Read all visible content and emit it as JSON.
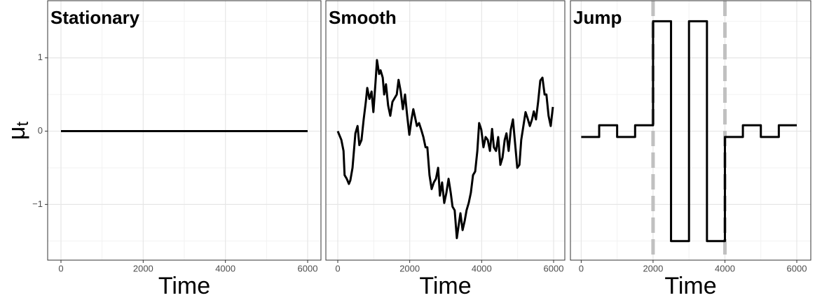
{
  "chart_data": [
    {
      "type": "line",
      "title": "Stationary",
      "y_label": {
        "main": "μ",
        "sub": "t"
      },
      "x_label": "Time",
      "color": "#000000",
      "x": [
        0,
        6000
      ],
      "values": [
        0,
        0
      ],
      "xlim": [
        -324,
        6324
      ],
      "ylim": [
        -1.76,
        1.78
      ],
      "xticks": [
        0,
        2000,
        4000,
        6000
      ],
      "yticks": [
        {
          "value": -1,
          "label": "−1"
        },
        0,
        1
      ],
      "xminor": [
        1000,
        3000,
        5000
      ],
      "yminor": [
        -1.5,
        -0.5,
        0.5,
        1.5
      ],
      "grid": true
    },
    {
      "type": "line",
      "title": "Smooth",
      "x_label": "Time",
      "color": "#000000",
      "x": [
        0,
        100,
        160,
        190,
        250,
        310,
        350,
        410,
        490,
        550,
        600,
        660,
        720,
        780,
        820,
        880,
        940,
        990,
        1050,
        1090,
        1150,
        1190,
        1250,
        1290,
        1340,
        1400,
        1460,
        1520,
        1580,
        1640,
        1690,
        1750,
        1810,
        1870,
        1930,
        1990,
        2050,
        2100,
        2140,
        2200,
        2260,
        2320,
        2380,
        2440,
        2490,
        2550,
        2610,
        2670,
        2730,
        2790,
        2840,
        2900,
        2960,
        3020,
        3080,
        3140,
        3190,
        3250,
        3310,
        3350,
        3410,
        3470,
        3530,
        3580,
        3640,
        3700,
        3760,
        3820,
        3880,
        3930,
        3990,
        4050,
        4110,
        4170,
        4230,
        4290,
        4340,
        4400,
        4460,
        4520,
        4580,
        4640,
        4690,
        4750,
        4810,
        4870,
        4930,
        4990,
        5050,
        5100,
        5160,
        5220,
        5280,
        5340,
        5400,
        5450,
        5510,
        5570,
        5630,
        5690,
        5750,
        5800,
        5860,
        5920,
        5980
      ],
      "values": [
        0,
        -0.12,
        -0.27,
        -0.6,
        -0.65,
        -0.72,
        -0.67,
        -0.5,
        -0.03,
        0.07,
        -0.19,
        -0.12,
        0.16,
        0.4,
        0.59,
        0.44,
        0.54,
        0.26,
        0.67,
        0.97,
        0.78,
        0.83,
        0.73,
        0.5,
        0.64,
        0.35,
        0.21,
        0.4,
        0.45,
        0.5,
        0.7,
        0.54,
        0.3,
        0.5,
        0.21,
        -0.05,
        0.16,
        0.3,
        0.21,
        0.07,
        0.11,
        0.02,
        -0.08,
        -0.22,
        -0.22,
        -0.6,
        -0.79,
        -0.7,
        -0.65,
        -0.5,
        -0.88,
        -0.7,
        -0.98,
        -0.84,
        -0.65,
        -0.84,
        -1.03,
        -1.08,
        -1.46,
        -1.32,
        -1.12,
        -1.35,
        -1.22,
        -1.08,
        -0.98,
        -0.84,
        -0.6,
        -0.55,
        -0.27,
        0.11,
        0.02,
        -0.22,
        -0.08,
        -0.12,
        -0.27,
        0.03,
        -0.22,
        -0.27,
        -0.08,
        -0.46,
        -0.36,
        -0.12,
        -0.03,
        -0.27,
        0.02,
        0.16,
        -0.17,
        -0.5,
        -0.46,
        -0.12,
        0.07,
        0.26,
        0.17,
        0.07,
        0.16,
        0.27,
        0.16,
        0.4,
        0.69,
        0.73,
        0.5,
        0.5,
        0.21,
        0.07,
        0.33
      ],
      "xlim": [
        -331,
        6312
      ],
      "ylim": [
        -1.76,
        1.78
      ],
      "xticks": [
        0,
        2000,
        4000,
        6000
      ],
      "yticks": [
        -1,
        0,
        1
      ],
      "xminor": [
        1000,
        3000,
        5000
      ],
      "yminor": [
        -1.5,
        -0.5,
        0.5,
        1.5
      ],
      "grid": true
    },
    {
      "type": "line",
      "title": "Jump",
      "x_label": "Time",
      "color": "#000000",
      "x": [
        0,
        500,
        500,
        1000,
        1000,
        1500,
        1500,
        2000,
        2000,
        2500,
        2500,
        3000,
        3000,
        3500,
        3500,
        4000,
        4000,
        4500,
        4500,
        5000,
        5000,
        5500,
        5500,
        6000
      ],
      "values": [
        -0.08,
        -0.08,
        0.08,
        0.08,
        -0.08,
        -0.08,
        0.08,
        0.08,
        1.5,
        1.5,
        -1.5,
        -1.5,
        1.5,
        1.5,
        -1.5,
        -1.5,
        -0.08,
        -0.08,
        0.08,
        0.08,
        -0.08,
        -0.08,
        0.08,
        0.08
      ],
      "vlines": [
        2000,
        4000
      ],
      "vline_color": "#c0c0c0",
      "xlim": [
        -300,
        6390
      ],
      "ylim": [
        -1.76,
        1.78
      ],
      "xticks": [
        0,
        2000,
        4000,
        6000
      ],
      "yticks": [
        -1,
        0,
        1
      ],
      "xminor": [
        1000,
        3000,
        5000
      ],
      "yminor": [
        -1.5,
        -0.5,
        0.5,
        1.5
      ],
      "grid": true
    }
  ]
}
